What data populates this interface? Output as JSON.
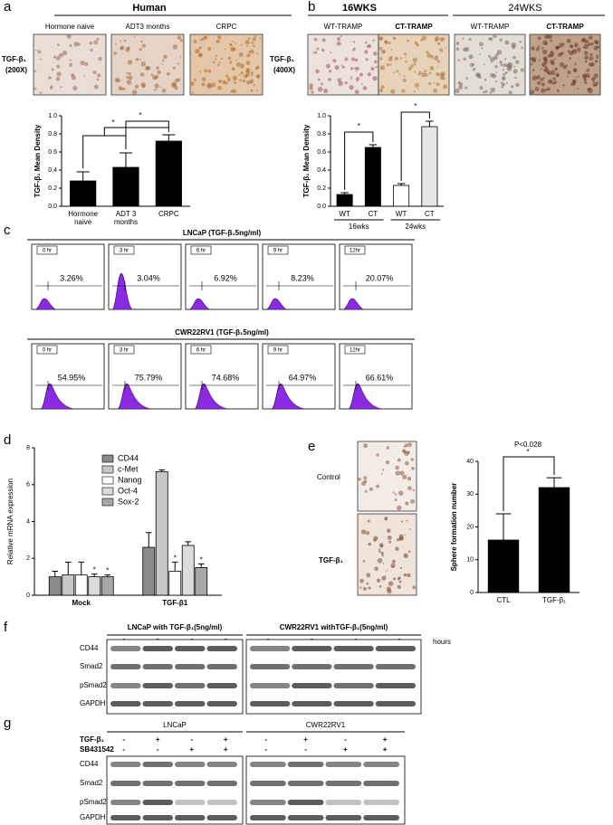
{
  "panels": {
    "a": {
      "label": "a",
      "title": "Human",
      "columns": [
        "Hormone naive",
        "ADT3 months",
        "CRPC"
      ],
      "stain": [
        "TGF-β₁",
        "(200X)"
      ]
    },
    "b": {
      "label": "b",
      "groups": [
        "16WKS",
        "24WKS"
      ],
      "columns": [
        "WT-TRAMP",
        "CT-TRAMP",
        "WT-TRAMP",
        "CT-TRAMP"
      ],
      "stain": [
        "TGF-β₁",
        "(400X)"
      ]
    },
    "c": {
      "label": "c",
      "rows": [
        {
          "title": "LNCaP (TGF-β₁5ng/ml)",
          "times": [
            "0 hr",
            "3 hr",
            "6 hr",
            "9 hr",
            "12hr"
          ],
          "percents": [
            "3.26%",
            "3.04%",
            "6.92%",
            "8.23%",
            "20.07%"
          ]
        },
        {
          "title": "CWR22RV1 (TGF-β₁5ng/ml)",
          "times": [
            "0 hr",
            "3 hr",
            "6 hr",
            "9 hr",
            "12hr"
          ],
          "percents": [
            "54.95%",
            "75.79%",
            "74.68%",
            "64.97%",
            "66.61%"
          ]
        }
      ]
    },
    "d": {
      "label": "d"
    },
    "e": {
      "label": "e",
      "conditions": [
        "Control",
        "TGF-β₁"
      ]
    },
    "f": {
      "label": "f",
      "blots": [
        {
          "title": "LNCaP with TGF-β₁(5ng/ml)",
          "lanes": [
            "0",
            "3",
            "6",
            "9"
          ]
        },
        {
          "title": "CWR22RV1 withTGF-β₁(5ng/ml)",
          "lanes": [
            "0",
            "3",
            "6",
            "9"
          ]
        }
      ],
      "unit": "hours",
      "rows": [
        "CD44",
        "Smad2",
        "pSmad2",
        "GAPDH"
      ]
    },
    "g": {
      "label": "g",
      "blots": [
        {
          "title": "LNCaP"
        },
        {
          "title": "CWR22RV1"
        }
      ],
      "treatments": [
        {
          "name": "TGF-β₁",
          "signs": [
            "-",
            "+",
            "-",
            "+"
          ]
        },
        {
          "name": "SB431542",
          "signs": [
            "-",
            "-",
            "+",
            "+"
          ]
        }
      ],
      "rows": [
        "CD44",
        "Smad2",
        "pSmad2",
        "GAPDH"
      ]
    }
  },
  "chart_data": [
    {
      "type": "bar",
      "ylabel": "TGF-β₁ Mean Density",
      "categories": [
        [
          "Hormone",
          "naive"
        ],
        [
          "ADT 3",
          "months"
        ],
        [
          "CRPC"
        ]
      ],
      "values": [
        0.28,
        0.43,
        0.72
      ],
      "errors": [
        0.1,
        0.16,
        0.07
      ],
      "color": "#000000",
      "ylim": [
        0,
        1
      ],
      "yticks": [
        {
          "value": 0,
          "label": "0.0"
        },
        0.2,
        0.4,
        0.6,
        0.8,
        {
          "value": 1,
          "label": "1.0"
        }
      ],
      "annotations": [
        "*",
        "*"
      ]
    },
    {
      "type": "bar",
      "ylabel": "TGF-β₁ Mean Density",
      "categories": [
        "WT",
        "CT",
        "WT",
        "CT"
      ],
      "groups": [
        "16wks",
        "24wks"
      ],
      "values": [
        0.13,
        0.65,
        0.23,
        0.88
      ],
      "errors": [
        0.02,
        0.03,
        0.02,
        0.06
      ],
      "colors": [
        "#000000",
        "#000000",
        "#ffffff",
        "#e6e6e6"
      ],
      "ylim": [
        0,
        1
      ],
      "yticks": [
        {
          "value": 0,
          "label": "0.0"
        },
        0.2,
        0.4,
        0.6,
        0.8,
        {
          "value": 1,
          "label": "1.0"
        }
      ],
      "annotations": [
        "*",
        "*"
      ]
    },
    {
      "type": "bar",
      "ylabel": "Relative mRNA expression",
      "categories": [
        "Mock",
        "TGF-β1"
      ],
      "series": [
        {
          "name": "CD44",
          "color": "#8a8a8a",
          "values": [
            1.0,
            2.6
          ],
          "errors": [
            0.3,
            0.8
          ]
        },
        {
          "name": "c-Met",
          "color": "#c8c8c8",
          "values": [
            1.1,
            6.7
          ],
          "errors": [
            0.7,
            0.1
          ]
        },
        {
          "name": "Nanog",
          "color": "#ffffff",
          "values": [
            1.1,
            1.3
          ],
          "errors": [
            0.7,
            0.5
          ]
        },
        {
          "name": "Oct-4",
          "color": "#dcdcdc",
          "values": [
            1.0,
            2.7
          ],
          "errors": [
            0.15,
            0.2
          ]
        },
        {
          "name": "Sox-2",
          "color": "#a8a8a8",
          "values": [
            1.0,
            1.5
          ],
          "errors": [
            0.1,
            0.2
          ]
        }
      ],
      "ylim": [
        0,
        8
      ],
      "yticks": [
        0,
        2,
        4,
        6,
        8
      ],
      "annotations": [
        "*",
        "*",
        "*",
        "*"
      ]
    },
    {
      "type": "bar",
      "ylabel": "Sphere formation number",
      "categories": [
        "CTL",
        "TGF-β₁"
      ],
      "values": [
        16,
        32
      ],
      "errors": [
        8,
        3
      ],
      "color": "#000000",
      "ylim": [
        0,
        40
      ],
      "yticks": [
        0,
        10,
        20,
        30,
        40
      ],
      "annotations": [
        "P<0.028",
        "*"
      ]
    }
  ]
}
